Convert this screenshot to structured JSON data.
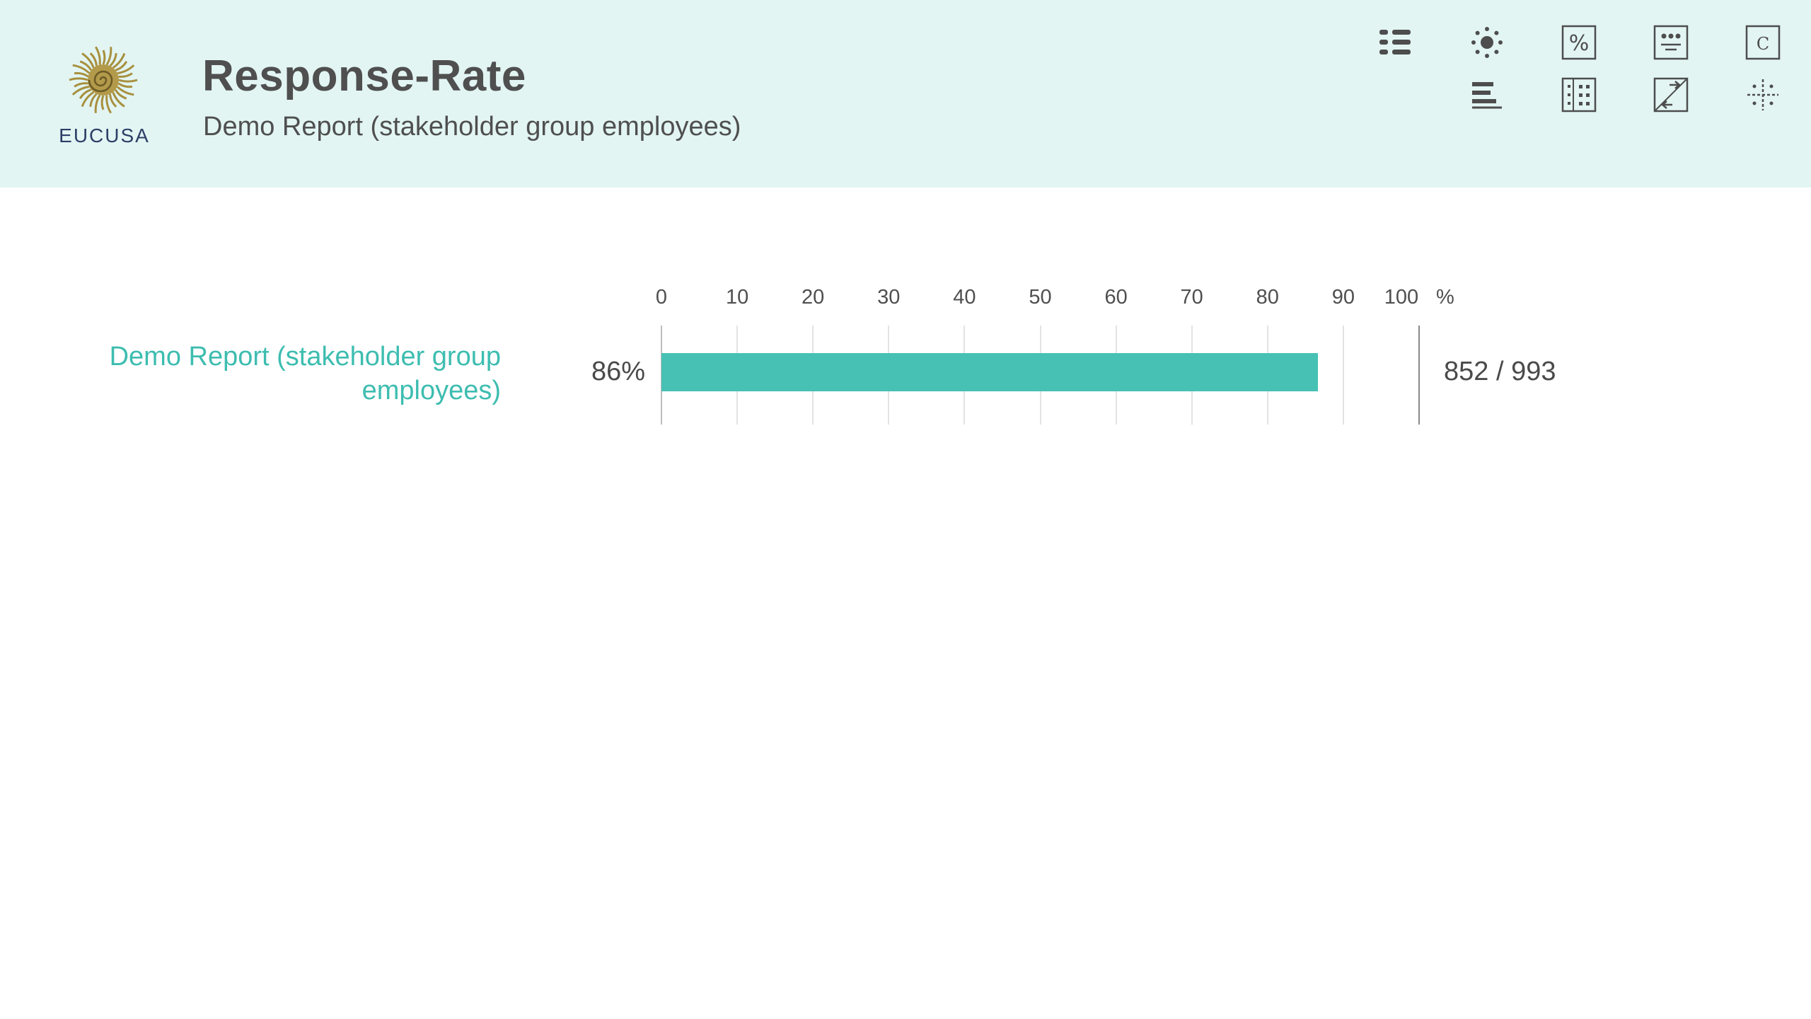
{
  "header": {
    "logo_text": "EUCUSA",
    "title": "Response-Rate",
    "subtitle": "Demo Report (stakeholder group employees)"
  },
  "toolbar": [
    {
      "name": "list-view-icon"
    },
    {
      "name": "brightness-icon"
    },
    {
      "name": "percent-icon"
    },
    {
      "name": "comment-box-icon"
    },
    {
      "name": "c-box-icon"
    },
    {
      "name": "bar-sort-icon"
    },
    {
      "name": "grid-table-icon"
    },
    {
      "name": "swap-arrows-icon"
    },
    {
      "name": "sparkle-icon"
    }
  ],
  "chart_data": {
    "type": "bar",
    "orientation": "horizontal",
    "categories": [
      "Demo Report (stakeholder group employees)"
    ],
    "values": [
      86
    ],
    "value_labels": [
      "86%"
    ],
    "count_labels": [
      "852 / 993"
    ],
    "xlim": [
      0,
      100
    ],
    "x_ticks": [
      "0",
      "10",
      "20",
      "30",
      "40",
      "50",
      "60",
      "70",
      "80",
      "90",
      "100"
    ],
    "x_unit": "%",
    "bar_color": "#46c1b4",
    "label_color": "#3dbdb0",
    "grid": true
  }
}
